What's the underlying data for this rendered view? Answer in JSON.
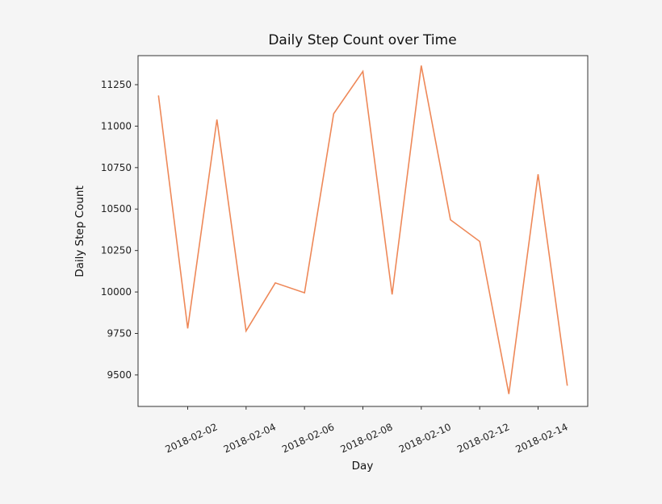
{
  "chart_data": {
    "type": "line",
    "title": "Daily Step Count over Time",
    "xlabel": "Day",
    "ylabel": "Daily Step Count",
    "x": [
      "2018-02-01",
      "2018-02-02",
      "2018-02-03",
      "2018-02-04",
      "2018-02-05",
      "2018-02-06",
      "2018-02-07",
      "2018-02-08",
      "2018-02-09",
      "2018-02-10",
      "2018-02-11",
      "2018-02-12",
      "2018-02-13",
      "2018-02-14",
      "2018-02-15"
    ],
    "series": [
      {
        "name": "Daily Step Count",
        "color": "#ee8858",
        "values": [
          11185,
          9780,
          11040,
          9765,
          10055,
          9995,
          11075,
          11330,
          9985,
          11365,
          10435,
          10305,
          9385,
          10710,
          9435
        ]
      }
    ],
    "xticks": [
      "2018-02-02",
      "2018-02-04",
      "2018-02-06",
      "2018-02-08",
      "2018-02-10",
      "2018-02-12",
      "2018-02-14"
    ],
    "yticks": [
      9500,
      9750,
      10000,
      10250,
      10500,
      10750,
      11000,
      11250
    ],
    "ylim": [
      9310,
      11425
    ],
    "xlim_days": [
      0.3,
      15.7
    ],
    "grid": false,
    "legend": "none",
    "xtick_rotation": 25
  }
}
